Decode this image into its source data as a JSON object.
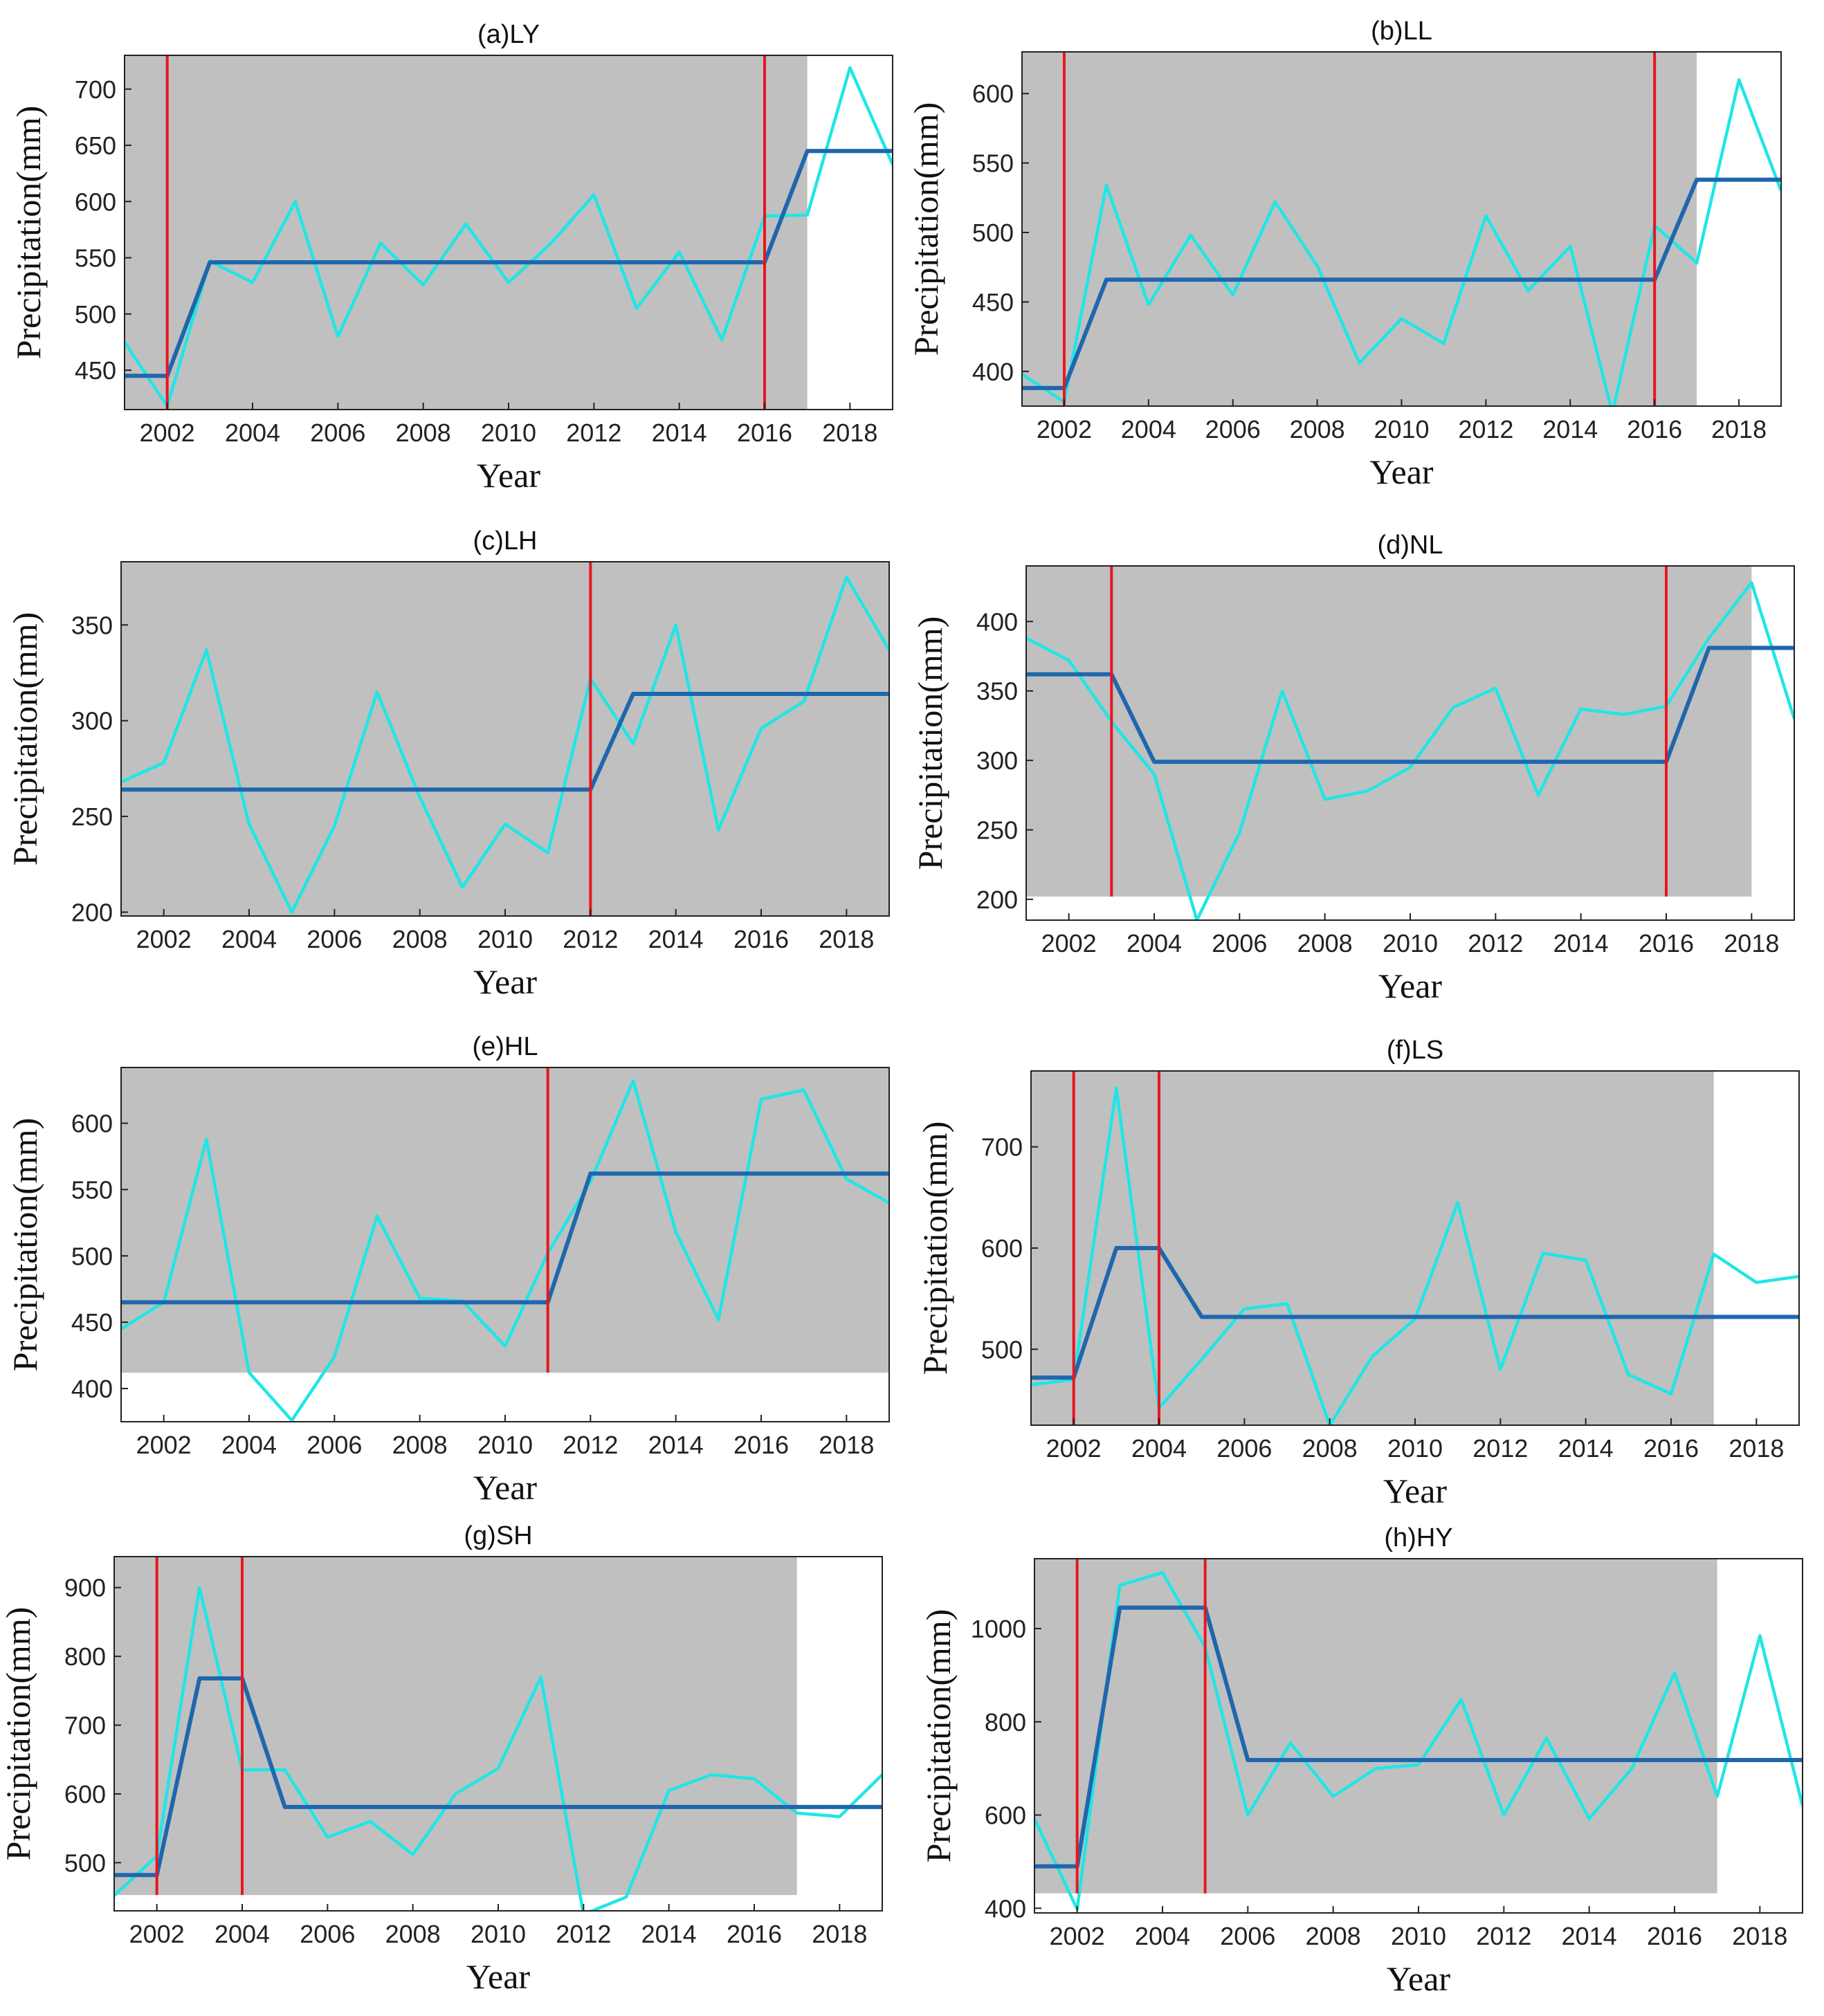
{
  "figure": {
    "xlabel": "Year",
    "ylabel": "Precipitation(mm)"
  },
  "colors": {
    "observed": "#1fe6e6",
    "fitted": "#1f67ad",
    "changepoint": "#e8161e",
    "shading": "#c0c0c0",
    "axis": "#222222"
  },
  "chart_data": [
    {
      "type": "line",
      "title": "(a)LY",
      "xlabel": "Year",
      "ylabel": "Precipitation(mm)",
      "xlim": [
        2001,
        2019
      ],
      "ylim": [
        415,
        730
      ],
      "xticks": [
        2002,
        2004,
        2006,
        2008,
        2010,
        2012,
        2014,
        2016,
        2018
      ],
      "yticks": [
        450,
        500,
        550,
        600,
        650,
        700
      ],
      "x": [
        2001,
        2002,
        2003,
        2004,
        2005,
        2006,
        2007,
        2008,
        2009,
        2010,
        2011,
        2012,
        2013,
        2014,
        2015,
        2016,
        2017,
        2018,
        2019
      ],
      "series": [
        {
          "name": "observed",
          "values": [
            475,
            418,
            547,
            528,
            600,
            480,
            563,
            526,
            580,
            528,
            563,
            606,
            505,
            555,
            477,
            587,
            588,
            719,
            633
          ]
        },
        {
          "name": "fitted",
          "values": [
            445,
            445,
            546,
            546,
            546,
            546,
            546,
            546,
            546,
            546,
            546,
            546,
            546,
            546,
            546,
            546,
            645,
            645,
            645
          ]
        }
      ],
      "changepoints": [
        2002,
        2016
      ],
      "shaded_x": [
        2001,
        2017
      ],
      "shaded_y": [
        415,
        730
      ]
    },
    {
      "type": "line",
      "title": "(b)LL",
      "xlabel": "Year",
      "ylabel": "Precipitation(mm)",
      "xlim": [
        2001,
        2019
      ],
      "ylim": [
        375,
        630
      ],
      "xticks": [
        2002,
        2004,
        2006,
        2008,
        2010,
        2012,
        2014,
        2016,
        2018
      ],
      "yticks": [
        400,
        450,
        500,
        550,
        600
      ],
      "x": [
        2001,
        2002,
        2003,
        2004,
        2005,
        2006,
        2007,
        2008,
        2009,
        2010,
        2011,
        2012,
        2013,
        2014,
        2015,
        2016,
        2017,
        2018,
        2019
      ],
      "series": [
        {
          "name": "observed",
          "values": [
            398,
            378,
            534,
            448,
            498,
            455,
            522,
            476,
            406,
            438,
            420,
            512,
            458,
            490,
            370,
            505,
            478,
            610,
            530
          ]
        },
        {
          "name": "fitted",
          "values": [
            388,
            388,
            466,
            466,
            466,
            466,
            466,
            466,
            466,
            466,
            466,
            466,
            466,
            466,
            466,
            466,
            538,
            538,
            538
          ]
        }
      ],
      "changepoints": [
        2002,
        2016
      ],
      "shaded_x": [
        2001,
        2017
      ],
      "shaded_y": [
        375,
        630
      ]
    },
    {
      "type": "line",
      "title": "(c)LH",
      "xlabel": "Year",
      "ylabel": "Precipitation(mm)",
      "xlim": [
        2001,
        2019
      ],
      "ylim": [
        198,
        383
      ],
      "xticks": [
        2002,
        2004,
        2006,
        2008,
        2010,
        2012,
        2014,
        2016,
        2018
      ],
      "yticks": [
        200,
        250,
        300,
        350
      ],
      "x": [
        2001,
        2002,
        2003,
        2004,
        2005,
        2006,
        2007,
        2008,
        2009,
        2010,
        2011,
        2012,
        2013,
        2014,
        2015,
        2016,
        2017,
        2018,
        2019
      ],
      "series": [
        {
          "name": "observed",
          "values": [
            268,
            278,
            337,
            246,
            200,
            245,
            315,
            260,
            213,
            246,
            231,
            322,
            288,
            350,
            243,
            296,
            310,
            375,
            337
          ]
        },
        {
          "name": "fitted",
          "values": [
            264,
            264,
            264,
            264,
            264,
            264,
            264,
            264,
            264,
            264,
            264,
            264,
            314,
            314,
            314,
            314,
            314,
            314,
            314
          ]
        }
      ],
      "changepoints": [
        2012
      ],
      "shaded_x": [
        2001,
        2019
      ],
      "shaded_y": [
        198,
        383
      ]
    },
    {
      "type": "line",
      "title": "(d)NL",
      "xlabel": "Year",
      "ylabel": "Precipitation(mm)",
      "xlim": [
        2001,
        2019
      ],
      "ylim": [
        185,
        440
      ],
      "xticks": [
        2002,
        2004,
        2006,
        2008,
        2010,
        2012,
        2014,
        2016,
        2018
      ],
      "yticks": [
        200,
        250,
        300,
        350,
        400
      ],
      "x": [
        2001,
        2002,
        2003,
        2004,
        2005,
        2006,
        2007,
        2008,
        2009,
        2010,
        2011,
        2012,
        2013,
        2014,
        2015,
        2016,
        2017,
        2018,
        2019
      ],
      "series": [
        {
          "name": "observed",
          "values": [
            388,
            372,
            328,
            290,
            185,
            248,
            350,
            272,
            278,
            295,
            338,
            352,
            275,
            337,
            333,
            339,
            388,
            428,
            330
          ]
        },
        {
          "name": "fitted",
          "values": [
            362,
            362,
            362,
            299,
            299,
            299,
            299,
            299,
            299,
            299,
            299,
            299,
            299,
            299,
            299,
            299,
            381,
            381,
            381
          ]
        }
      ],
      "changepoints": [
        2003,
        2016
      ],
      "shaded_x": [
        2001,
        2018
      ],
      "shaded_y": [
        202,
        440
      ]
    },
    {
      "type": "line",
      "title": "(e)HL",
      "xlabel": "Year",
      "ylabel": "Precipitation(mm)",
      "xlim": [
        2001,
        2019
      ],
      "ylim": [
        375,
        642
      ],
      "xticks": [
        2002,
        2004,
        2006,
        2008,
        2010,
        2012,
        2014,
        2016,
        2018
      ],
      "yticks": [
        400,
        450,
        500,
        550,
        600
      ],
      "x": [
        2001,
        2002,
        2003,
        2004,
        2005,
        2006,
        2007,
        2008,
        2009,
        2010,
        2011,
        2012,
        2013,
        2014,
        2015,
        2016,
        2017,
        2018,
        2019
      ],
      "series": [
        {
          "name": "observed",
          "values": [
            445,
            465,
            588,
            412,
            376,
            424,
            530,
            468,
            466,
            432,
            502,
            556,
            632,
            518,
            452,
            618,
            625,
            558,
            540
          ]
        },
        {
          "name": "fitted",
          "values": [
            465,
            465,
            465,
            465,
            465,
            465,
            465,
            465,
            465,
            465,
            465,
            562,
            562,
            562,
            562,
            562,
            562,
            562,
            562
          ]
        }
      ],
      "changepoints": [
        2011
      ],
      "shaded_x": [
        2001,
        2019
      ],
      "shaded_y": [
        412,
        642
      ]
    },
    {
      "type": "line",
      "title": "(f)LS",
      "xlabel": "Year",
      "ylabel": "Precipitation(mm)",
      "xlim": [
        2001,
        2019
      ],
      "ylim": [
        425,
        775
      ],
      "xticks": [
        2002,
        2004,
        2006,
        2008,
        2010,
        2012,
        2014,
        2016,
        2018
      ],
      "yticks": [
        500,
        600,
        700
      ],
      "x": [
        2001,
        2002,
        2003,
        2004,
        2005,
        2006,
        2007,
        2008,
        2009,
        2010,
        2011,
        2012,
        2013,
        2014,
        2015,
        2016,
        2017,
        2018,
        2019
      ],
      "series": [
        {
          "name": "observed",
          "values": [
            465,
            470,
            758,
            442,
            490,
            540,
            545,
            425,
            493,
            530,
            645,
            480,
            595,
            588,
            475,
            456,
            594,
            566,
            572
          ]
        },
        {
          "name": "fitted",
          "values": [
            472,
            472,
            600,
            600,
            532,
            532,
            532,
            532,
            532,
            532,
            532,
            532,
            532,
            532,
            532,
            532,
            532,
            532,
            532
          ]
        }
      ],
      "changepoints": [
        2002,
        2004
      ],
      "shaded_x": [
        2001,
        2017
      ],
      "shaded_y": [
        425,
        775
      ]
    },
    {
      "type": "line",
      "title": "(g)SH",
      "xlabel": "Year",
      "ylabel": "Precipitation(mm)",
      "xlim": [
        2001,
        2019
      ],
      "ylim": [
        430,
        945
      ],
      "xticks": [
        2002,
        2004,
        2006,
        2008,
        2010,
        2012,
        2014,
        2016,
        2018
      ],
      "yticks": [
        500,
        600,
        700,
        800,
        900
      ],
      "x": [
        2001,
        2002,
        2003,
        2004,
        2005,
        2006,
        2007,
        2008,
        2009,
        2010,
        2011,
        2012,
        2013,
        2014,
        2015,
        2016,
        2017,
        2018,
        2019
      ],
      "series": [
        {
          "name": "observed",
          "values": [
            452,
            510,
            900,
            635,
            635,
            537,
            560,
            512,
            600,
            637,
            770,
            425,
            450,
            605,
            628,
            622,
            572,
            567,
            628
          ]
        },
        {
          "name": "fitted",
          "values": [
            482,
            482,
            768,
            768,
            581,
            581,
            581,
            581,
            581,
            581,
            581,
            581,
            581,
            581,
            581,
            581,
            581,
            581,
            581
          ]
        }
      ],
      "changepoints": [
        2002,
        2004
      ],
      "shaded_x": [
        2001,
        2017
      ],
      "shaded_y": [
        453,
        945
      ]
    },
    {
      "type": "line",
      "title": "(h)HY",
      "xlabel": "Year",
      "ylabel": "Precipitation(mm)",
      "xlim": [
        2001,
        2019
      ],
      "ylim": [
        390,
        1150
      ],
      "xticks": [
        2002,
        2004,
        2006,
        2008,
        2010,
        2012,
        2014,
        2016,
        2018
      ],
      "yticks": [
        400,
        600,
        800,
        1000
      ],
      "x": [
        2001,
        2002,
        2003,
        2004,
        2005,
        2006,
        2007,
        2008,
        2009,
        2010,
        2011,
        2012,
        2013,
        2014,
        2015,
        2016,
        2017,
        2018,
        2019
      ],
      "series": [
        {
          "name": "observed",
          "values": [
            592,
            398,
            1093,
            1120,
            960,
            600,
            755,
            640,
            700,
            708,
            848,
            600,
            765,
            592,
            700,
            905,
            640,
            985,
            620
          ]
        },
        {
          "name": "fitted",
          "values": [
            490,
            490,
            1045,
            1045,
            1045,
            718,
            718,
            718,
            718,
            718,
            718,
            718,
            718,
            718,
            718,
            718,
            718,
            718,
            718
          ]
        }
      ],
      "changepoints": [
        2002,
        2005
      ],
      "shaded_x": [
        2001,
        2017
      ],
      "shaded_y": [
        432,
        1150
      ]
    }
  ]
}
